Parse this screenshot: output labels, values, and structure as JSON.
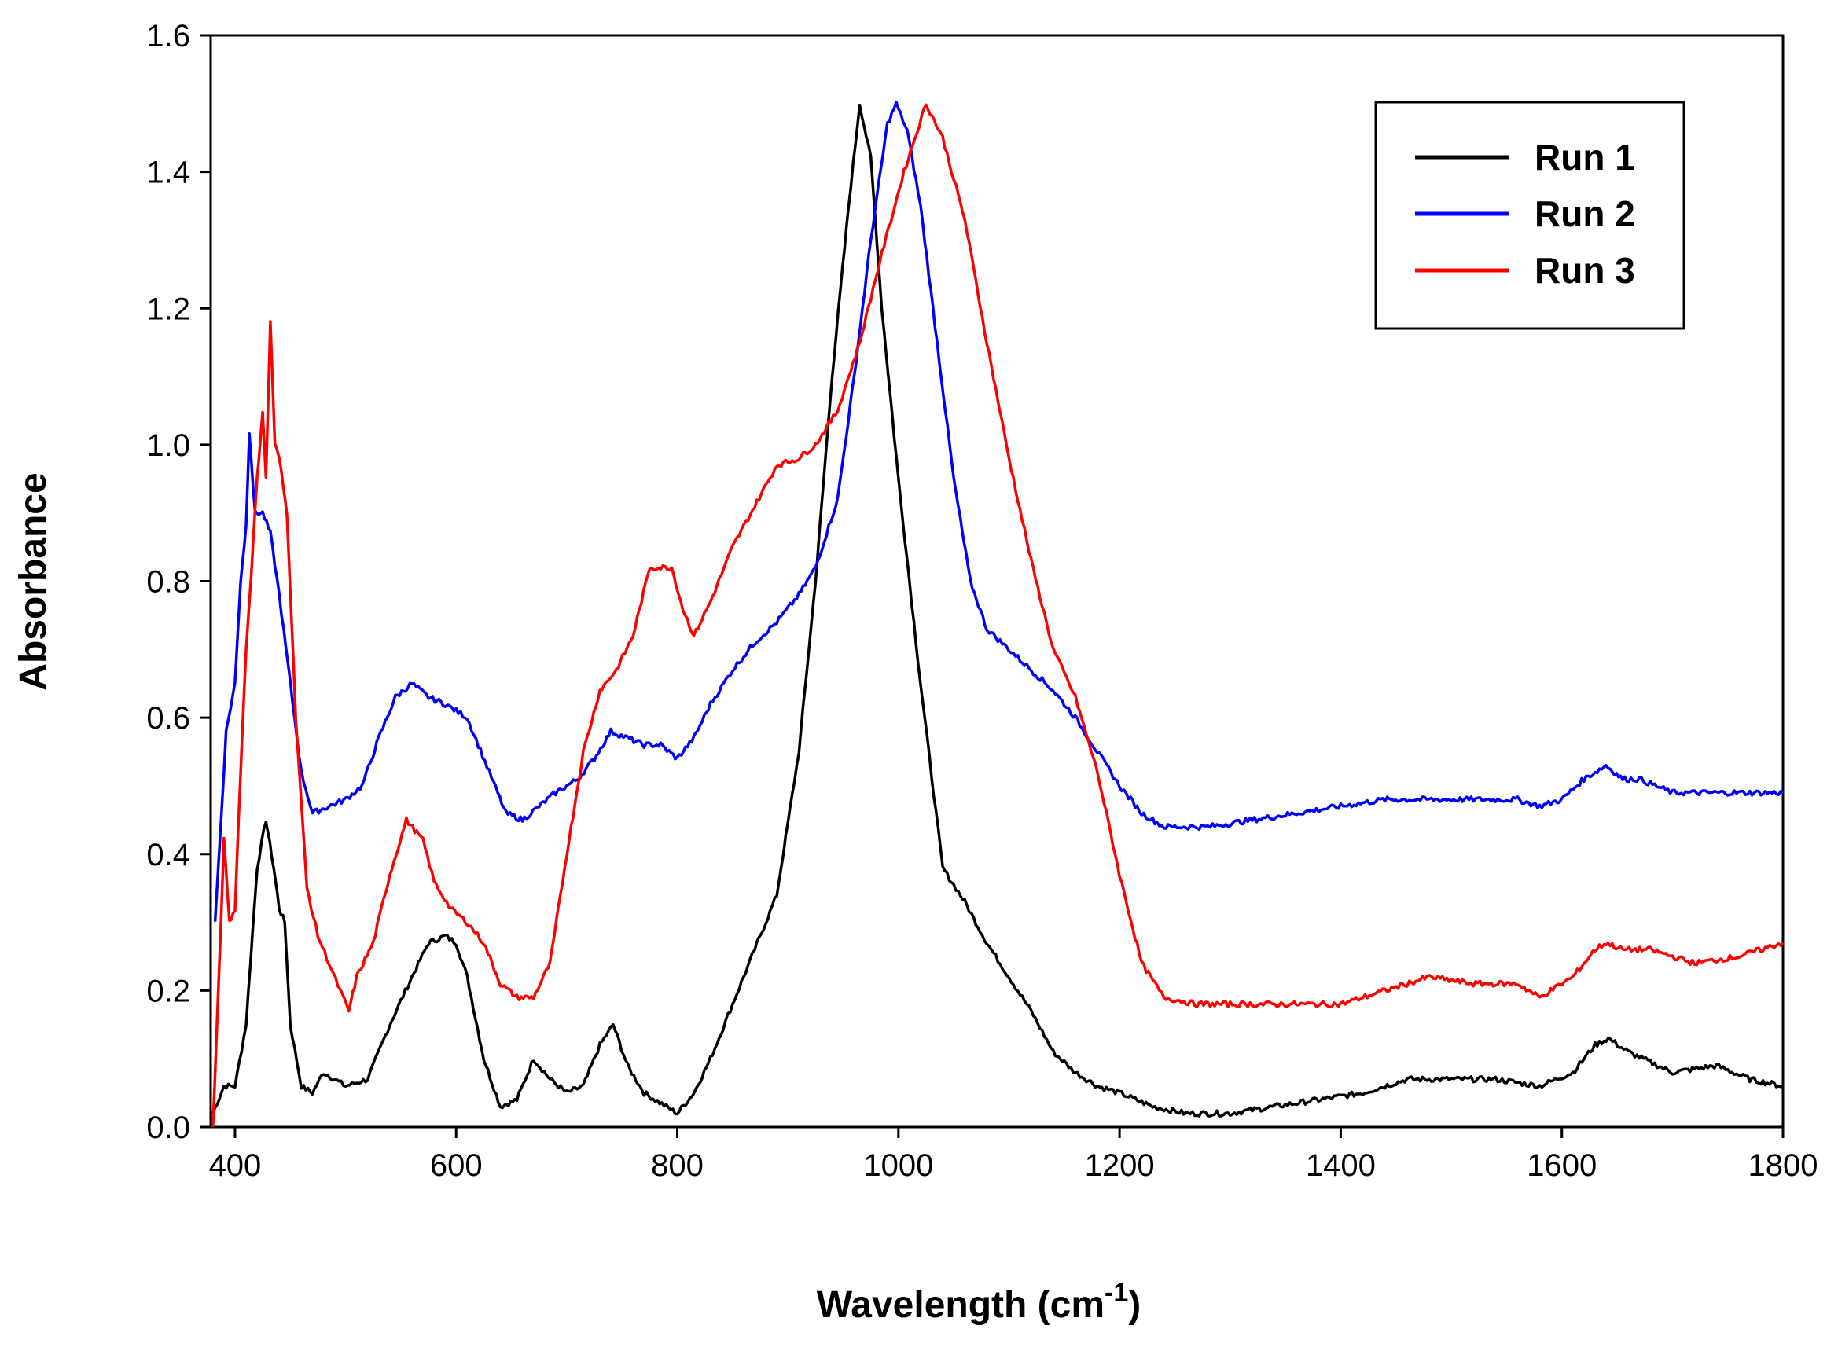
{
  "chart_data": {
    "type": "line",
    "xlabel": "Wavelength (cm",
    "xlabel_superscript": "-1",
    "xlabel_close": ")",
    "ylabel": "Absorbance",
    "xlim": [
      378,
      1800
    ],
    "ylim": [
      0.0,
      1.6
    ],
    "x_ticks": [
      400,
      600,
      800,
      1000,
      1200,
      1400,
      1600,
      1800
    ],
    "y_ticks": [
      0.0,
      0.2,
      0.4,
      0.6,
      0.8,
      1.0,
      1.2,
      1.4,
      1.6
    ],
    "y_tick_labels": [
      "0.0",
      "0.2",
      "0.4",
      "0.6",
      "0.8",
      "1.0",
      "1.2",
      "1.4",
      "1.6"
    ],
    "legend_position": "top-right",
    "series": [
      {
        "name": "Run 1",
        "color": "#000000",
        "points": [
          [
            380,
            0.02
          ],
          [
            390,
            0.06
          ],
          [
            400,
            0.06
          ],
          [
            410,
            0.15
          ],
          [
            420,
            0.38
          ],
          [
            428,
            0.45
          ],
          [
            435,
            0.38
          ],
          [
            440,
            0.32
          ],
          [
            445,
            0.3
          ],
          [
            450,
            0.15
          ],
          [
            460,
            0.06
          ],
          [
            470,
            0.05
          ],
          [
            480,
            0.08
          ],
          [
            500,
            0.06
          ],
          [
            520,
            0.07
          ],
          [
            540,
            0.15
          ],
          [
            560,
            0.22
          ],
          [
            575,
            0.27
          ],
          [
            590,
            0.28
          ],
          [
            600,
            0.27
          ],
          [
            610,
            0.22
          ],
          [
            625,
            0.1
          ],
          [
            640,
            0.03
          ],
          [
            655,
            0.04
          ],
          [
            670,
            0.1
          ],
          [
            685,
            0.07
          ],
          [
            700,
            0.05
          ],
          [
            715,
            0.06
          ],
          [
            730,
            0.12
          ],
          [
            742,
            0.15
          ],
          [
            755,
            0.09
          ],
          [
            770,
            0.05
          ],
          [
            790,
            0.03
          ],
          [
            800,
            0.02
          ],
          [
            815,
            0.05
          ],
          [
            830,
            0.1
          ],
          [
            850,
            0.18
          ],
          [
            870,
            0.26
          ],
          [
            890,
            0.34
          ],
          [
            910,
            0.55
          ],
          [
            925,
            0.8
          ],
          [
            940,
            1.1
          ],
          [
            955,
            1.35
          ],
          [
            965,
            1.5
          ],
          [
            975,
            1.42
          ],
          [
            985,
            1.2
          ],
          [
            1000,
            0.95
          ],
          [
            1020,
            0.65
          ],
          [
            1040,
            0.38
          ],
          [
            1060,
            0.33
          ],
          [
            1080,
            0.27
          ],
          [
            1100,
            0.22
          ],
          [
            1120,
            0.17
          ],
          [
            1140,
            0.11
          ],
          [
            1160,
            0.08
          ],
          [
            1180,
            0.06
          ],
          [
            1200,
            0.05
          ],
          [
            1230,
            0.03
          ],
          [
            1260,
            0.02
          ],
          [
            1300,
            0.02
          ],
          [
            1340,
            0.03
          ],
          [
            1380,
            0.04
          ],
          [
            1420,
            0.05
          ],
          [
            1460,
            0.07
          ],
          [
            1500,
            0.07
          ],
          [
            1540,
            0.07
          ],
          [
            1580,
            0.06
          ],
          [
            1610,
            0.08
          ],
          [
            1630,
            0.12
          ],
          [
            1642,
            0.13
          ],
          [
            1660,
            0.11
          ],
          [
            1700,
            0.08
          ],
          [
            1740,
            0.09
          ],
          [
            1770,
            0.07
          ],
          [
            1800,
            0.06
          ]
        ]
      },
      {
        "name": "Run 2",
        "color": "#0000ff",
        "points": [
          [
            382,
            0.3
          ],
          [
            392,
            0.58
          ],
          [
            400,
            0.65
          ],
          [
            405,
            0.8
          ],
          [
            410,
            0.88
          ],
          [
            413,
            1.02
          ],
          [
            418,
            0.9
          ],
          [
            425,
            0.9
          ],
          [
            432,
            0.87
          ],
          [
            440,
            0.78
          ],
          [
            450,
            0.65
          ],
          [
            460,
            0.52
          ],
          [
            470,
            0.46
          ],
          [
            485,
            0.47
          ],
          [
            500,
            0.48
          ],
          [
            515,
            0.5
          ],
          [
            530,
            0.57
          ],
          [
            545,
            0.63
          ],
          [
            560,
            0.65
          ],
          [
            575,
            0.63
          ],
          [
            590,
            0.62
          ],
          [
            610,
            0.6
          ],
          [
            630,
            0.52
          ],
          [
            645,
            0.46
          ],
          [
            660,
            0.45
          ],
          [
            675,
            0.47
          ],
          [
            690,
            0.49
          ],
          [
            710,
            0.51
          ],
          [
            725,
            0.54
          ],
          [
            740,
            0.58
          ],
          [
            755,
            0.57
          ],
          [
            770,
            0.56
          ],
          [
            785,
            0.56
          ],
          [
            800,
            0.54
          ],
          [
            815,
            0.57
          ],
          [
            830,
            0.62
          ],
          [
            850,
            0.67
          ],
          [
            870,
            0.71
          ],
          [
            890,
            0.74
          ],
          [
            910,
            0.78
          ],
          [
            925,
            0.82
          ],
          [
            945,
            0.92
          ],
          [
            960,
            1.1
          ],
          [
            975,
            1.3
          ],
          [
            990,
            1.47
          ],
          [
            998,
            1.5
          ],
          [
            1008,
            1.46
          ],
          [
            1020,
            1.35
          ],
          [
            1035,
            1.15
          ],
          [
            1050,
            0.95
          ],
          [
            1065,
            0.8
          ],
          [
            1080,
            0.73
          ],
          [
            1100,
            0.7
          ],
          [
            1120,
            0.67
          ],
          [
            1140,
            0.64
          ],
          [
            1160,
            0.6
          ],
          [
            1180,
            0.55
          ],
          [
            1200,
            0.5
          ],
          [
            1220,
            0.46
          ],
          [
            1240,
            0.44
          ],
          [
            1280,
            0.44
          ],
          [
            1320,
            0.45
          ],
          [
            1360,
            0.46
          ],
          [
            1400,
            0.47
          ],
          [
            1440,
            0.48
          ],
          [
            1480,
            0.48
          ],
          [
            1520,
            0.48
          ],
          [
            1560,
            0.48
          ],
          [
            1580,
            0.47
          ],
          [
            1600,
            0.48
          ],
          [
            1620,
            0.51
          ],
          [
            1640,
            0.53
          ],
          [
            1655,
            0.51
          ],
          [
            1670,
            0.51
          ],
          [
            1700,
            0.49
          ],
          [
            1750,
            0.49
          ],
          [
            1800,
            0.49
          ]
        ]
      },
      {
        "name": "Run 3",
        "color": "#ff0000",
        "points": [
          [
            380,
            0.0
          ],
          [
            385,
            0.2
          ],
          [
            390,
            0.42
          ],
          [
            395,
            0.3
          ],
          [
            400,
            0.32
          ],
          [
            405,
            0.52
          ],
          [
            410,
            0.7
          ],
          [
            415,
            0.82
          ],
          [
            420,
            0.95
          ],
          [
            425,
            1.05
          ],
          [
            428,
            0.95
          ],
          [
            432,
            1.18
          ],
          [
            436,
            1.0
          ],
          [
            440,
            0.98
          ],
          [
            447,
            0.9
          ],
          [
            455,
            0.6
          ],
          [
            465,
            0.35
          ],
          [
            475,
            0.28
          ],
          [
            485,
            0.24
          ],
          [
            495,
            0.2
          ],
          [
            503,
            0.17
          ],
          [
            510,
            0.22
          ],
          [
            525,
            0.27
          ],
          [
            540,
            0.37
          ],
          [
            555,
            0.45
          ],
          [
            570,
            0.42
          ],
          [
            580,
            0.36
          ],
          [
            595,
            0.32
          ],
          [
            610,
            0.3
          ],
          [
            625,
            0.27
          ],
          [
            640,
            0.21
          ],
          [
            655,
            0.19
          ],
          [
            670,
            0.19
          ],
          [
            685,
            0.24
          ],
          [
            700,
            0.4
          ],
          [
            715,
            0.55
          ],
          [
            730,
            0.64
          ],
          [
            745,
            0.67
          ],
          [
            760,
            0.72
          ],
          [
            775,
            0.82
          ],
          [
            785,
            0.82
          ],
          [
            795,
            0.82
          ],
          [
            805,
            0.76
          ],
          [
            815,
            0.72
          ],
          [
            830,
            0.77
          ],
          [
            850,
            0.85
          ],
          [
            870,
            0.91
          ],
          [
            890,
            0.97
          ],
          [
            910,
            0.98
          ],
          [
            925,
            1.0
          ],
          [
            945,
            1.05
          ],
          [
            965,
            1.15
          ],
          [
            985,
            1.28
          ],
          [
            1005,
            1.4
          ],
          [
            1025,
            1.5
          ],
          [
            1040,
            1.45
          ],
          [
            1060,
            1.33
          ],
          [
            1080,
            1.15
          ],
          [
            1100,
            0.98
          ],
          [
            1120,
            0.83
          ],
          [
            1140,
            0.7
          ],
          [
            1160,
            0.63
          ],
          [
            1180,
            0.52
          ],
          [
            1200,
            0.37
          ],
          [
            1220,
            0.24
          ],
          [
            1240,
            0.19
          ],
          [
            1270,
            0.18
          ],
          [
            1300,
            0.18
          ],
          [
            1330,
            0.18
          ],
          [
            1360,
            0.18
          ],
          [
            1400,
            0.18
          ],
          [
            1440,
            0.2
          ],
          [
            1480,
            0.22
          ],
          [
            1520,
            0.21
          ],
          [
            1560,
            0.21
          ],
          [
            1580,
            0.19
          ],
          [
            1610,
            0.22
          ],
          [
            1630,
            0.26
          ],
          [
            1640,
            0.27
          ],
          [
            1655,
            0.26
          ],
          [
            1680,
            0.26
          ],
          [
            1720,
            0.24
          ],
          [
            1760,
            0.25
          ],
          [
            1800,
            0.27
          ]
        ]
      }
    ]
  }
}
